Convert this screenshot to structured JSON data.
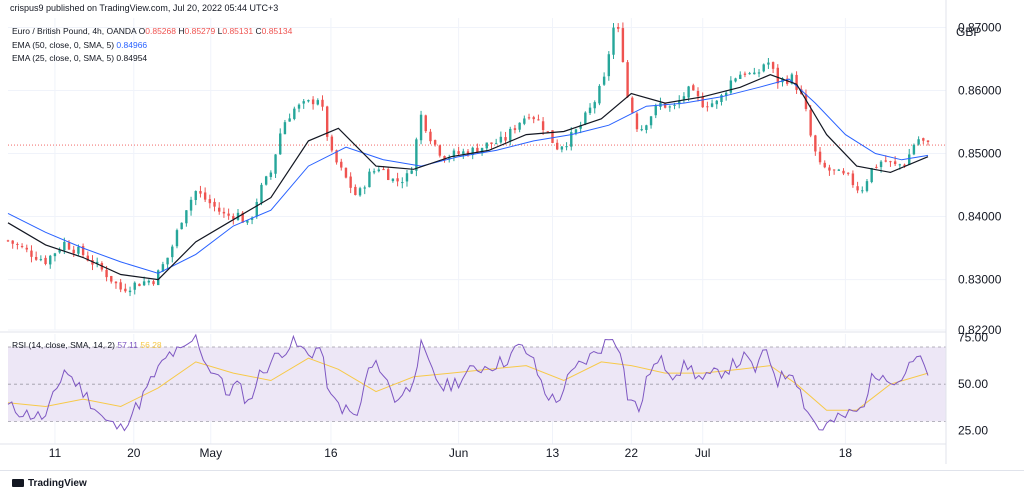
{
  "header": {
    "published": "crispus9 published on TradingView.com, Jul 20, 2022 05:44 UTC+3"
  },
  "legend_main": {
    "symbol": "Euro / British Pound, 4h, OANDA",
    "open_label": "O",
    "open": "0.85268",
    "high_label": "H",
    "high": "0.85279",
    "low_label": "L",
    "low": "0.85131",
    "close_label": "C",
    "close": "0.85134"
  },
  "legend_ema50": {
    "label": "EMA (50, close, 0, SMA, 5)",
    "value": "0.84966"
  },
  "legend_ema25": {
    "label": "EMA (25, close, 0, SMA, 5)",
    "value": "0.84954"
  },
  "legend_rsi": {
    "label": "RSI (14, close, SMA, 14, 2)",
    "value1": "57.11",
    "value2": "56.28"
  },
  "footer": {
    "brand": "TradingView"
  },
  "colors": {
    "up": "#26a69a",
    "down": "#ef5350",
    "ema50": "#2962ff",
    "ema25": "#131722",
    "rsi": "#7e57c2",
    "rsi_ma": "#f7c948",
    "rsi_band": "#ede7f6"
  },
  "chart_data": [
    {
      "type": "candlestick",
      "title": "Euro / British Pound, 4h, OANDA",
      "currency_label": "GBP",
      "yticks": [
        "0.87000",
        "0.86000",
        "0.85000",
        "0.84000",
        "0.83000",
        "0.82200"
      ],
      "ylim": [
        0.822,
        0.8715
      ],
      "last_price": 0.85134,
      "xticks": [
        "11",
        "20",
        "May",
        "16",
        "Jun",
        "13",
        "22",
        "Jul",
        "18"
      ],
      "close_path": [
        [
          0,
          0.8362
        ],
        [
          10,
          0.8345
        ],
        [
          20,
          0.833
        ],
        [
          30,
          0.8358
        ],
        [
          40,
          0.834
        ],
        [
          52,
          0.831
        ],
        [
          60,
          0.8285
        ],
        [
          70,
          0.8295
        ],
        [
          78,
          0.83
        ],
        [
          86,
          0.834
        ],
        [
          94,
          0.841
        ],
        [
          100,
          0.844
        ],
        [
          106,
          0.8425
        ],
        [
          112,
          0.841
        ],
        [
          116,
          0.84
        ],
        [
          122,
          0.8405
        ],
        [
          128,
          0.8385
        ],
        [
          134,
          0.844
        ],
        [
          140,
          0.847
        ],
        [
          146,
          0.8545
        ],
        [
          152,
          0.857
        ],
        [
          160,
          0.858
        ],
        [
          166,
          0.859
        ],
        [
          172,
          0.85
        ],
        [
          180,
          0.846
        ],
        [
          186,
          0.843
        ],
        [
          192,
          0.8465
        ],
        [
          198,
          0.848
        ],
        [
          206,
          0.8455
        ],
        [
          214,
          0.8465
        ],
        [
          220,
          0.856
        ],
        [
          226,
          0.852
        ],
        [
          232,
          0.8495
        ],
        [
          240,
          0.85
        ],
        [
          248,
          0.8505
        ],
        [
          256,
          0.8515
        ],
        [
          264,
          0.852
        ],
        [
          272,
          0.855
        ],
        [
          278,
          0.8565
        ],
        [
          286,
          0.854
        ],
        [
          292,
          0.851
        ],
        [
          298,
          0.852
        ],
        [
          304,
          0.854
        ],
        [
          312,
          0.858
        ],
        [
          318,
          0.862
        ],
        [
          322,
          0.87
        ],
        [
          326,
          0.869
        ],
        [
          330,
          0.859
        ],
        [
          336,
          0.8535
        ],
        [
          342,
          0.856
        ],
        [
          348,
          0.858
        ],
        [
          354,
          0.857
        ],
        [
          362,
          0.86
        ],
        [
          370,
          0.858
        ],
        [
          378,
          0.858
        ],
        [
          386,
          0.862
        ],
        [
          392,
          0.863
        ],
        [
          398,
          0.862
        ],
        [
          404,
          0.865
        ],
        [
          410,
          0.8615
        ],
        [
          418,
          0.862
        ],
        [
          424,
          0.858
        ],
        [
          428,
          0.852
        ],
        [
          432,
          0.848
        ],
        [
          440,
          0.847
        ],
        [
          448,
          0.846
        ],
        [
          454,
          0.844
        ],
        [
          460,
          0.8475
        ],
        [
          466,
          0.849
        ],
        [
          472,
          0.848
        ],
        [
          478,
          0.8485
        ],
        [
          484,
          0.8525
        ],
        [
          490,
          0.8513
        ]
      ],
      "ema25_path": [
        [
          0,
          0.839
        ],
        [
          20,
          0.8355
        ],
        [
          40,
          0.8335
        ],
        [
          60,
          0.8308
        ],
        [
          80,
          0.83
        ],
        [
          100,
          0.836
        ],
        [
          120,
          0.8395
        ],
        [
          140,
          0.843
        ],
        [
          160,
          0.852
        ],
        [
          176,
          0.854
        ],
        [
          196,
          0.848
        ],
        [
          216,
          0.8475
        ],
        [
          236,
          0.8495
        ],
        [
          256,
          0.8505
        ],
        [
          276,
          0.853
        ],
        [
          296,
          0.8535
        ],
        [
          316,
          0.8555
        ],
        [
          332,
          0.8595
        ],
        [
          350,
          0.858
        ],
        [
          370,
          0.859
        ],
        [
          390,
          0.8605
        ],
        [
          406,
          0.8625
        ],
        [
          420,
          0.861
        ],
        [
          436,
          0.853
        ],
        [
          452,
          0.848
        ],
        [
          470,
          0.847
        ],
        [
          490,
          0.8495
        ]
      ],
      "ema50_path": [
        [
          0,
          0.8405
        ],
        [
          20,
          0.8375
        ],
        [
          40,
          0.835
        ],
        [
          60,
          0.8328
        ],
        [
          80,
          0.831
        ],
        [
          100,
          0.834
        ],
        [
          120,
          0.8385
        ],
        [
          140,
          0.841
        ],
        [
          160,
          0.848
        ],
        [
          180,
          0.851
        ],
        [
          200,
          0.849
        ],
        [
          220,
          0.848
        ],
        [
          240,
          0.8495
        ],
        [
          260,
          0.8505
        ],
        [
          280,
          0.852
        ],
        [
          300,
          0.853
        ],
        [
          320,
          0.8545
        ],
        [
          340,
          0.8575
        ],
        [
          360,
          0.858
        ],
        [
          380,
          0.859
        ],
        [
          400,
          0.8605
        ],
        [
          416,
          0.8618
        ],
        [
          430,
          0.858
        ],
        [
          446,
          0.853
        ],
        [
          462,
          0.85
        ],
        [
          476,
          0.849
        ],
        [
          490,
          0.8497
        ]
      ]
    },
    {
      "type": "line",
      "title": "RSI (14, close, SMA, 14, 2)",
      "yticks": [
        "75.00",
        "50.00",
        "25.00"
      ],
      "ylim": [
        20,
        77
      ],
      "band": [
        30,
        70
      ],
      "midline": 50,
      "rsi_path": [
        [
          0,
          38
        ],
        [
          10,
          34
        ],
        [
          20,
          32
        ],
        [
          30,
          58
        ],
        [
          40,
          46
        ],
        [
          52,
          30
        ],
        [
          60,
          26
        ],
        [
          70,
          40
        ],
        [
          78,
          55
        ],
        [
          86,
          66
        ],
        [
          94,
          68
        ],
        [
          100,
          76
        ],
        [
          106,
          60
        ],
        [
          112,
          55
        ],
        [
          116,
          45
        ],
        [
          122,
          50
        ],
        [
          128,
          40
        ],
        [
          134,
          55
        ],
        [
          140,
          62
        ],
        [
          146,
          68
        ],
        [
          152,
          72
        ],
        [
          160,
          66
        ],
        [
          166,
          70
        ],
        [
          172,
          42
        ],
        [
          180,
          36
        ],
        [
          186,
          32
        ],
        [
          192,
          58
        ],
        [
          198,
          60
        ],
        [
          206,
          42
        ],
        [
          214,
          48
        ],
        [
          220,
          70
        ],
        [
          226,
          56
        ],
        [
          232,
          48
        ],
        [
          240,
          52
        ],
        [
          248,
          58
        ],
        [
          256,
          60
        ],
        [
          264,
          62
        ],
        [
          272,
          70
        ],
        [
          278,
          66
        ],
        [
          286,
          46
        ],
        [
          292,
          40
        ],
        [
          298,
          52
        ],
        [
          304,
          60
        ],
        [
          312,
          66
        ],
        [
          318,
          72
        ],
        [
          322,
          76
        ],
        [
          326,
          70
        ],
        [
          330,
          44
        ],
        [
          336,
          36
        ],
        [
          342,
          58
        ],
        [
          348,
          62
        ],
        [
          354,
          56
        ],
        [
          362,
          60
        ],
        [
          370,
          52
        ],
        [
          378,
          56
        ],
        [
          386,
          60
        ],
        [
          392,
          64
        ],
        [
          398,
          58
        ],
        [
          404,
          68
        ],
        [
          410,
          52
        ],
        [
          418,
          58
        ],
        [
          424,
          40
        ],
        [
          428,
          32
        ],
        [
          432,
          26
        ],
        [
          440,
          30
        ],
        [
          448,
          34
        ],
        [
          454,
          36
        ],
        [
          460,
          52
        ],
        [
          466,
          58
        ],
        [
          472,
          50
        ],
        [
          478,
          56
        ],
        [
          484,
          64
        ],
        [
          490,
          57
        ]
      ],
      "rsi_ma_path": [
        [
          0,
          40
        ],
        [
          20,
          38
        ],
        [
          40,
          42
        ],
        [
          60,
          38
        ],
        [
          80,
          48
        ],
        [
          100,
          62
        ],
        [
          120,
          56
        ],
        [
          140,
          52
        ],
        [
          160,
          64
        ],
        [
          176,
          58
        ],
        [
          196,
          46
        ],
        [
          216,
          54
        ],
        [
          236,
          56
        ],
        [
          256,
          58
        ],
        [
          276,
          60
        ],
        [
          296,
          52
        ],
        [
          316,
          62
        ],
        [
          332,
          60
        ],
        [
          350,
          56
        ],
        [
          370,
          56
        ],
        [
          390,
          58
        ],
        [
          406,
          60
        ],
        [
          420,
          50
        ],
        [
          436,
          36
        ],
        [
          452,
          36
        ],
        [
          470,
          50
        ],
        [
          490,
          56
        ]
      ]
    }
  ]
}
